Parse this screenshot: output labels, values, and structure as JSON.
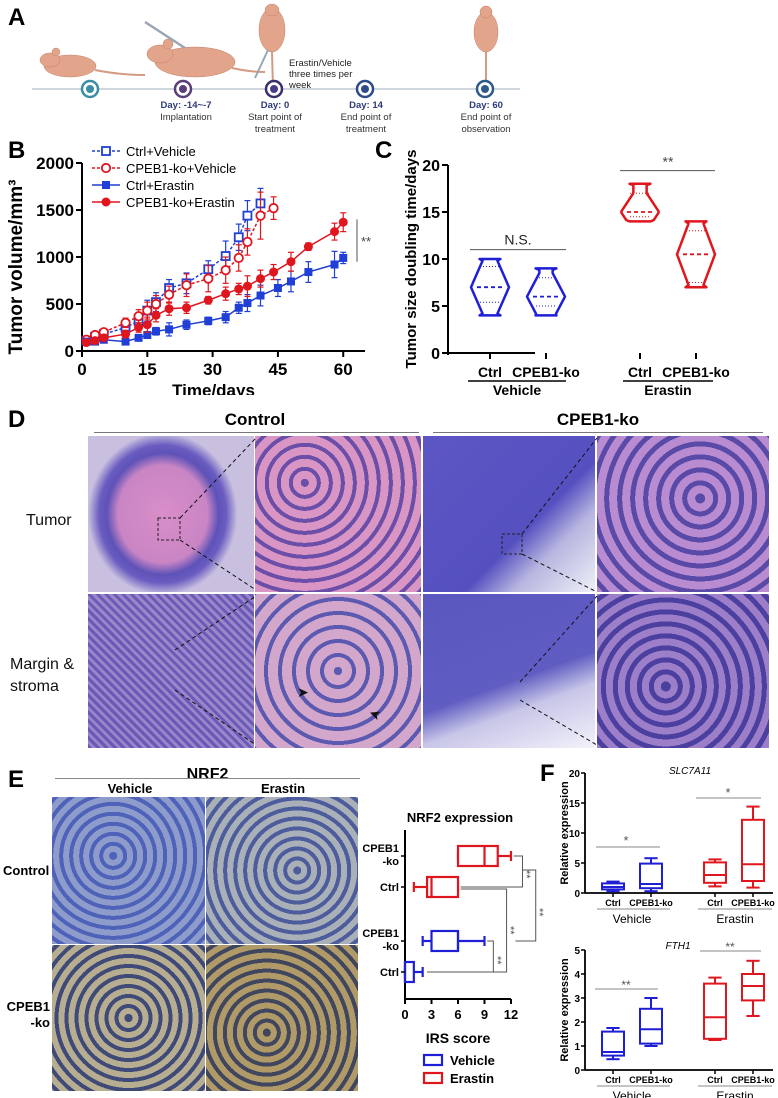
{
  "panels": {
    "A": {
      "letter": "A",
      "timeline": [
        {
          "day": "",
          "label1": "",
          "label2": "",
          "dot_color": "#3b8ea5"
        },
        {
          "day": "Day: -14~-7",
          "label1": "Implantation",
          "label2": "",
          "dot_color": "#5a3d7a"
        },
        {
          "day": "Day: 0",
          "label1": "Start  point of",
          "label2": "treatment",
          "dot_color": "#4a3a8a"
        },
        {
          "day": "Day: 14",
          "label1": "End point of",
          "label2": "treatment",
          "dot_color": "#2d4a8a"
        },
        {
          "day": "Day: 60",
          "label1": "End point of",
          "label2": "observation",
          "dot_color": "#2d5a8a"
        }
      ],
      "treatment_note": [
        "Erastin/Vehicle",
        "three times per",
        "week"
      ]
    },
    "B": {
      "letter": "B",
      "significance": "**"
    },
    "C": {
      "letter": "C",
      "ns_label": "N.S.",
      "sig_label": "**"
    },
    "D": {
      "letter": "D",
      "col_headers": [
        "Control",
        "CPEB1-ko"
      ],
      "row_labels": [
        "Tumor",
        "Margin &",
        "stroma"
      ]
    },
    "E": {
      "letter": "E",
      "stain": "NRF2",
      "col_headers": [
        "Vehicle",
        "Erastin"
      ],
      "row_labels": [
        "Control",
        "CPEB1",
        "-ko"
      ]
    },
    "F": {
      "letter": "F"
    }
  },
  "chart_data": [
    {
      "id": "B",
      "type": "line",
      "title": "",
      "xlabel": "Time/days",
      "ylabel": "Tumor volume/mm³",
      "xlim": [
        0,
        65
      ],
      "ylim": [
        0,
        2000
      ],
      "xticks": [
        0,
        15,
        30,
        45,
        60
      ],
      "yticks": [
        0,
        500,
        1000,
        1500,
        2000
      ],
      "legend_position": "top-left",
      "annotation": "**",
      "series": [
        {
          "name": "Ctrl+Vehicle",
          "color": "#1f3fd6",
          "marker": "open-square",
          "dashed": true,
          "x": [
            1,
            3,
            5,
            10,
            13,
            15,
            17,
            20,
            24,
            29,
            33,
            36,
            38,
            41
          ],
          "y": [
            110,
            150,
            180,
            250,
            320,
            430,
            520,
            670,
            720,
            870,
            1010,
            1210,
            1440,
            1570
          ],
          "err": [
            40,
            40,
            40,
            60,
            70,
            110,
            100,
            90,
            110,
            90,
            160,
            140,
            160,
            160
          ]
        },
        {
          "name": "CPEB1-ko+Vehicle",
          "color": "#e0161e",
          "marker": "open-circle",
          "dashed": true,
          "x": [
            1,
            3,
            5,
            10,
            13,
            15,
            17,
            20,
            24,
            29,
            33,
            36,
            38,
            41,
            44
          ],
          "y": [
            120,
            170,
            200,
            300,
            370,
            430,
            500,
            600,
            700,
            770,
            860,
            990,
            1160,
            1440,
            1520
          ],
          "err": [
            30,
            30,
            30,
            50,
            70,
            90,
            90,
            90,
            120,
            140,
            140,
            140,
            140,
            250,
            120
          ]
        },
        {
          "name": "Ctrl+Erastin",
          "color": "#1f3fd6",
          "marker": "filled-square",
          "dashed": false,
          "x": [
            1,
            3,
            5,
            10,
            13,
            15,
            17,
            20,
            24,
            29,
            33,
            36,
            38,
            41,
            45,
            48,
            52,
            58,
            60
          ],
          "y": [
            100,
            100,
            120,
            100,
            140,
            170,
            210,
            230,
            280,
            320,
            360,
            460,
            510,
            590,
            670,
            740,
            840,
            920,
            990
          ],
          "err": [
            20,
            20,
            20,
            20,
            30,
            30,
            40,
            70,
            50,
            40,
            60,
            60,
            90,
            110,
            90,
            110,
            110,
            140,
            60
          ]
        },
        {
          "name": "CPEB1-ko+Erastin",
          "color": "#e0161e",
          "marker": "filled-circle",
          "dashed": false,
          "x": [
            1,
            3,
            5,
            10,
            13,
            15,
            17,
            20,
            24,
            29,
            33,
            36,
            38,
            41,
            44,
            48,
            52,
            58,
            60
          ],
          "y": [
            90,
            110,
            140,
            180,
            250,
            280,
            380,
            450,
            460,
            540,
            610,
            660,
            690,
            770,
            840,
            950,
            1110,
            1270,
            1370
          ],
          "err": [
            20,
            20,
            20,
            40,
            50,
            80,
            70,
            70,
            60,
            40,
            70,
            60,
            110,
            90,
            80,
            100,
            40,
            90,
            100
          ]
        }
      ]
    },
    {
      "id": "C",
      "type": "violin",
      "title": "",
      "ylabel": "Tumor size doubling time/days",
      "ylim": [
        0,
        20
      ],
      "yticks": [
        0,
        5,
        10,
        15,
        20
      ],
      "categories": [
        "Ctrl",
        "CPEB1-ko",
        "Ctrl",
        "CPEB1-ko"
      ],
      "groups": [
        "Vehicle",
        "Erastin"
      ],
      "series": [
        {
          "name": "Vehicle Ctrl",
          "color": "#1f1fd6",
          "min": 4,
          "q1": 5.4,
          "median": 7,
          "q3": 9.2,
          "max": 10
        },
        {
          "name": "Vehicle CPEB1-ko",
          "color": "#1f1fd6",
          "min": 4,
          "q1": 5,
          "median": 6,
          "q3": 8,
          "max": 9
        },
        {
          "name": "Erastin Ctrl",
          "color": "#e0161e",
          "min": 14,
          "q1": 14.5,
          "median": 15,
          "q3": 17,
          "max": 18
        },
        {
          "name": "Erastin CPEB1-ko",
          "color": "#e0161e",
          "min": 7,
          "q1": 7.5,
          "median": 10.5,
          "q3": 13,
          "max": 14
        }
      ],
      "annotations": [
        {
          "text": "N.S.",
          "between": [
            "Vehicle Ctrl",
            "Vehicle CPEB1-ko"
          ]
        },
        {
          "text": "**",
          "between": [
            "Erastin Ctrl",
            "Erastin CPEB1-ko"
          ]
        }
      ]
    },
    {
      "id": "E",
      "type": "box",
      "orientation": "horizontal",
      "title": "NRF2 expression",
      "xlabel": "IRS score",
      "xlim": [
        0,
        12
      ],
      "xticks": [
        0,
        3,
        6,
        9,
        12
      ],
      "categories": [
        "CPEB1-ko",
        "Ctrl",
        "CPEB1-ko",
        "Ctrl"
      ],
      "legend": [
        {
          "name": "Vehicle",
          "color": "#1f1fd6"
        },
        {
          "name": "Erastin",
          "color": "#e0161e"
        }
      ],
      "series": [
        {
          "name": "Erastin CPEB1-ko",
          "color": "#e0161e",
          "min": 6,
          "q1": 6,
          "median": 9,
          "q3": 10.5,
          "max": 12
        },
        {
          "name": "Erastin Ctrl",
          "color": "#e0161e",
          "min": 1,
          "q1": 2.5,
          "median": 3,
          "q3": 6,
          "max": 6
        },
        {
          "name": "Vehicle CPEB1-ko",
          "color": "#1f1fd6",
          "min": 2,
          "q1": 3,
          "median": 6,
          "q3": 6,
          "max": 9
        },
        {
          "name": "Vehicle Ctrl",
          "color": "#1f1fd6",
          "min": 0,
          "q1": 0,
          "median": 0,
          "q3": 1,
          "max": 2
        }
      ],
      "annotations": [
        "**",
        "**",
        "**",
        "**"
      ]
    },
    {
      "id": "F-SLC7A11",
      "type": "box",
      "title": "SLC7A11",
      "ylabel": "Relative expression",
      "ylim": [
        0,
        20
      ],
      "yticks": [
        0,
        5,
        10,
        15,
        20
      ],
      "categories": [
        "Ctrl",
        "CPEB1-ko",
        "Ctrl",
        "CPEB1-ko"
      ],
      "groups": [
        "Vehicle",
        "Erastin"
      ],
      "series": [
        {
          "name": "Vehicle Ctrl",
          "color": "#1f1fd6",
          "min": 0.3,
          "q1": 0.6,
          "median": 1.0,
          "q3": 1.6,
          "max": 1.9
        },
        {
          "name": "Vehicle CPEB1-ko",
          "color": "#1f1fd6",
          "min": 0.3,
          "q1": 0.8,
          "median": 1.5,
          "q3": 4.9,
          "max": 5.8
        },
        {
          "name": "Erastin Ctrl",
          "color": "#e0161e",
          "min": 1.1,
          "q1": 1.7,
          "median": 3.0,
          "q3": 5.1,
          "max": 5.6
        },
        {
          "name": "Erastin CPEB1-ko",
          "color": "#e0161e",
          "min": 0.9,
          "q1": 2.0,
          "median": 4.8,
          "q3": 12.2,
          "max": 14.4
        }
      ],
      "annotations": [
        "*",
        "*"
      ]
    },
    {
      "id": "F-FTH1",
      "type": "box",
      "title": "FTH1",
      "ylabel": "Relative expression",
      "ylim": [
        0,
        5
      ],
      "yticks": [
        0,
        1,
        2,
        3,
        4,
        5
      ],
      "categories": [
        "Ctrl",
        "CPEB1-ko",
        "Ctrl",
        "CPEB1-ko"
      ],
      "groups": [
        "Vehicle",
        "Erastin"
      ],
      "series": [
        {
          "name": "Vehicle Ctrl",
          "color": "#1f1fd6",
          "min": 0.45,
          "q1": 0.6,
          "median": 0.75,
          "q3": 1.6,
          "max": 1.75
        },
        {
          "name": "Vehicle CPEB1-ko",
          "color": "#1f1fd6",
          "min": 1.0,
          "q1": 1.1,
          "median": 1.7,
          "q3": 2.55,
          "max": 3.0
        },
        {
          "name": "Erastin Ctrl",
          "color": "#e0161e",
          "min": 1.25,
          "q1": 1.3,
          "median": 2.2,
          "q3": 3.6,
          "max": 3.85
        },
        {
          "name": "Erastin CPEB1-ko",
          "color": "#e0161e",
          "min": 2.25,
          "q1": 2.9,
          "median": 3.5,
          "q3": 4.0,
          "max": 4.55
        }
      ],
      "annotations": [
        "**",
        "**"
      ]
    }
  ]
}
